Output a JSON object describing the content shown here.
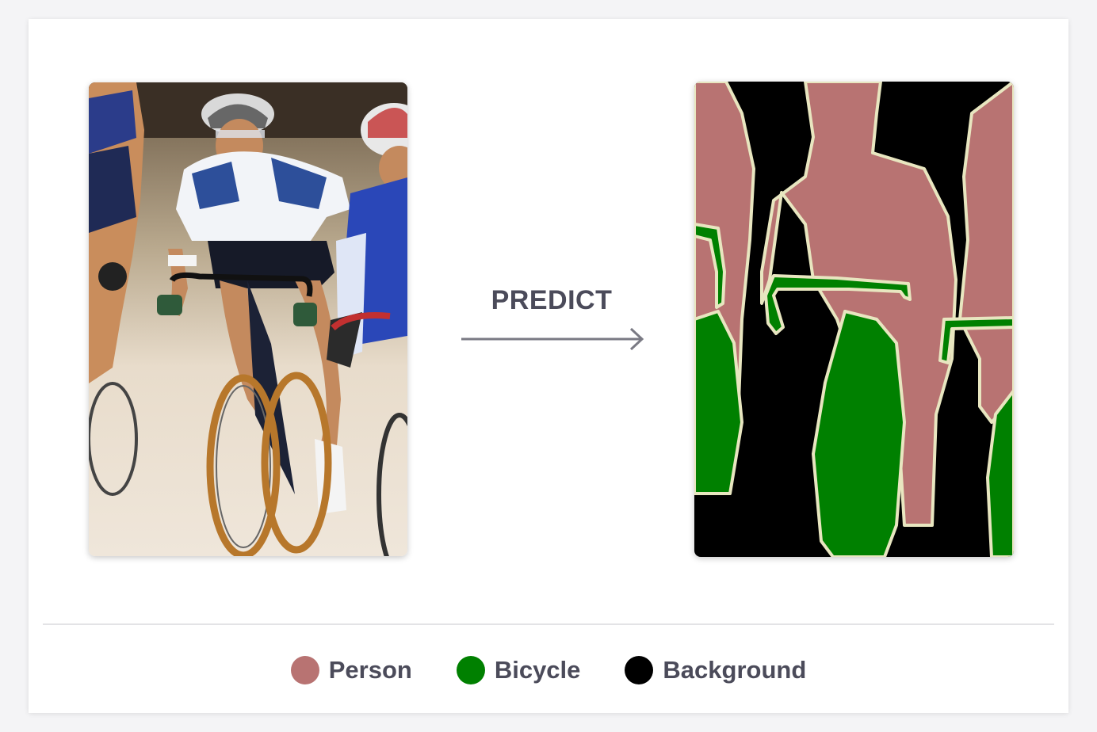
{
  "predict_label": "PREDICT",
  "legend": [
    {
      "label": "Person",
      "color": "#b87372"
    },
    {
      "label": "Bicycle",
      "color": "#008000"
    },
    {
      "label": "Background",
      "color": "#000000"
    }
  ],
  "input_image": {
    "alt": "cyclists"
  },
  "colors": {
    "text": "#4b4b5a",
    "arrow": "#7a7a84",
    "outline": "#e8e6c0"
  }
}
